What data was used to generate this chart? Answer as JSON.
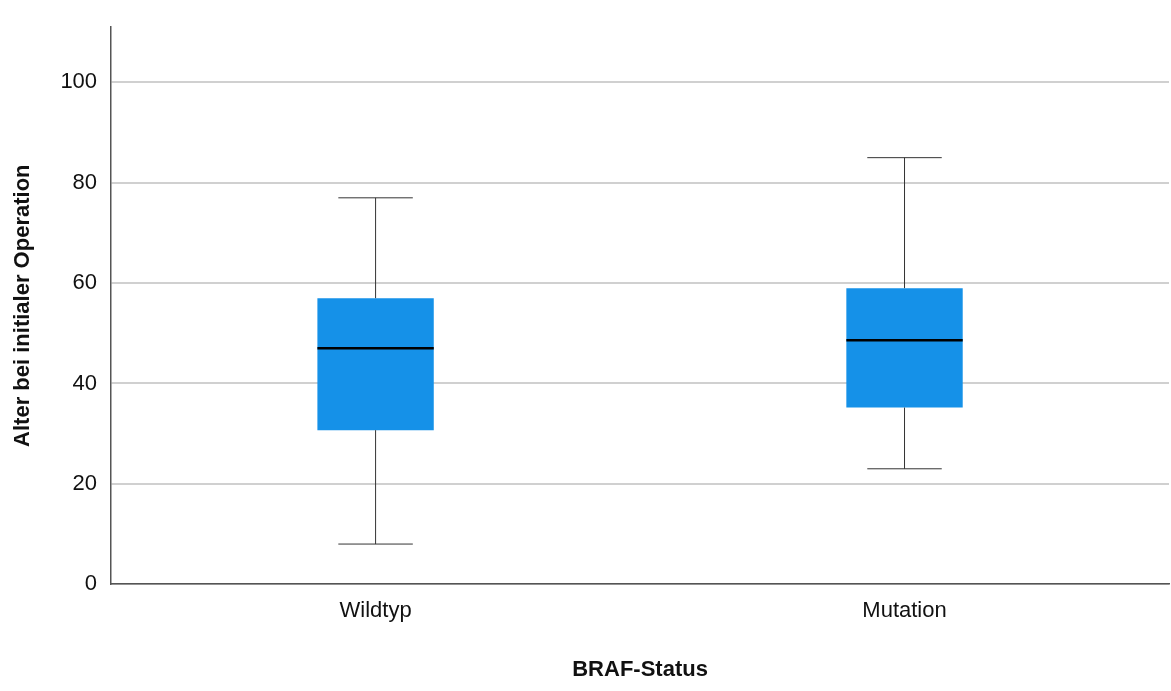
{
  "chart_data": {
    "type": "box",
    "xlabel": "BRAF-Status",
    "ylabel": "Alter bei initialer Operation",
    "categories": [
      "Wildtyp",
      "Mutation"
    ],
    "color": "#1591e8",
    "boxes": [
      {
        "low": 8,
        "q1": 30.7,
        "median": 47,
        "q3": 57,
        "high": 77
      },
      {
        "low": 23,
        "q1": 35.2,
        "median": 48.6,
        "q3": 59,
        "high": 85
      }
    ],
    "ylim": [
      0,
      111
    ],
    "yticks": [
      0,
      20,
      40,
      60,
      80,
      100
    ],
    "grid": "y"
  }
}
